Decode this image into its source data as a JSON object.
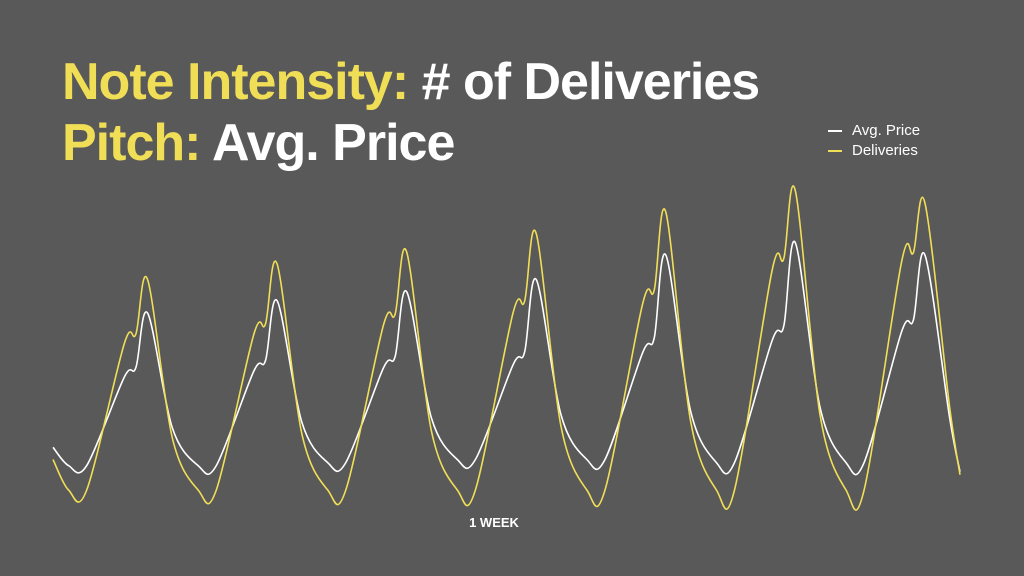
{
  "title": {
    "line1_accent": "Note Intensity:",
    "line1_rest": " # of Deliveries",
    "line2_accent": "Pitch:",
    "line2_rest": " Avg. Price"
  },
  "colors": {
    "background": "#595959",
    "accent": "#f1de57",
    "text": "#ffffff"
  },
  "chart_data": {
    "type": "line",
    "xlabel": "1 WEEK",
    "ylabel": "",
    "xlim": [
      0,
      7
    ],
    "ylim": [
      0,
      100
    ],
    "grid": false,
    "legend_position": "top-right",
    "period_labels": [],
    "series": [
      {
        "name": "Avg. Price",
        "color": "#ffffff",
        "peaks": [
          58,
          62,
          65,
          69,
          77,
          81,
          77
        ],
        "shoulders": [
          37,
          39,
          40,
          41,
          45,
          49,
          52
        ],
        "troughs": [
          8,
          8,
          9,
          10,
          10,
          9,
          9,
          6
        ],
        "start_value": 14
      },
      {
        "name": "Deliveries",
        "color": "#f1de57",
        "peaks": [
          69,
          74,
          78,
          84,
          91,
          98,
          94
        ],
        "shoulders": [
          48,
          51,
          54,
          58,
          61,
          72,
          75
        ],
        "troughs": [
          0,
          0,
          0,
          0,
          0,
          0,
          0,
          5
        ],
        "start_value": 10
      }
    ]
  }
}
